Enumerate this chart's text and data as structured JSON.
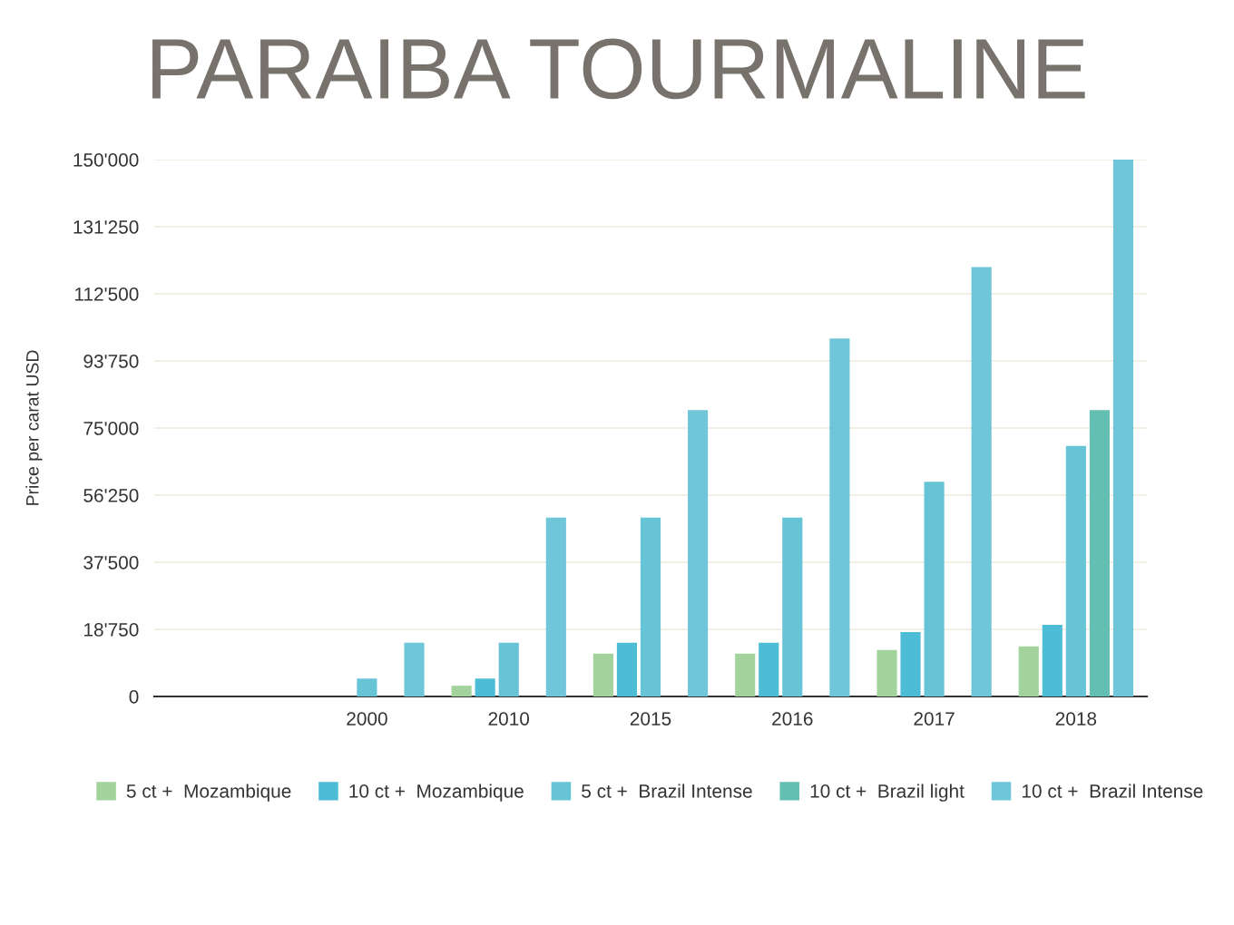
{
  "chart_data": {
    "type": "bar",
    "title": "PARAIBA TOURMALINE",
    "ylabel": "Price per carat USD",
    "categories": [
      null,
      "2000",
      "2010",
      "2015",
      "2016",
      "2017",
      "2018"
    ],
    "series": [
      {
        "name": "5 ct +  Mozambique",
        "color": "#a3d39c",
        "values": [
          null,
          null,
          3000,
          12000,
          12000,
          13000,
          14000
        ]
      },
      {
        "name": "10 ct +  Mozambique",
        "color": "#4dbdd5",
        "values": [
          null,
          null,
          5000,
          15000,
          15000,
          18000,
          20000
        ]
      },
      {
        "name": "5 ct +  Brazil Intense",
        "color": "#66c4d6",
        "values": [
          null,
          5000,
          15000,
          50000,
          50000,
          60000,
          70000
        ]
      },
      {
        "name": "10 ct +  Brazil light",
        "color": "#63bfb2",
        "values": [
          null,
          null,
          null,
          null,
          null,
          null,
          80000
        ]
      },
      {
        "name": "10 ct +  Brazil Intense",
        "color": "#6ec6d8",
        "values": [
          null,
          15000,
          50000,
          80000,
          100000,
          120000,
          150000
        ]
      }
    ],
    "ylim": [
      0,
      150000
    ],
    "yticks": [
      0,
      {
        "value": 18750,
        "label": "18'750"
      },
      {
        "value": 37500,
        "label": "37'500"
      },
      {
        "value": 56250,
        "label": "56'250"
      },
      {
        "value": 75000,
        "label": "75'000"
      },
      {
        "value": 93750,
        "label": "93'750"
      },
      {
        "value": 112500,
        "label": "112'500"
      },
      {
        "value": 131250,
        "label": "131'250"
      },
      {
        "value": 150000,
        "label": "150'000"
      }
    ],
    "grid": "y",
    "legend": "bottom"
  }
}
